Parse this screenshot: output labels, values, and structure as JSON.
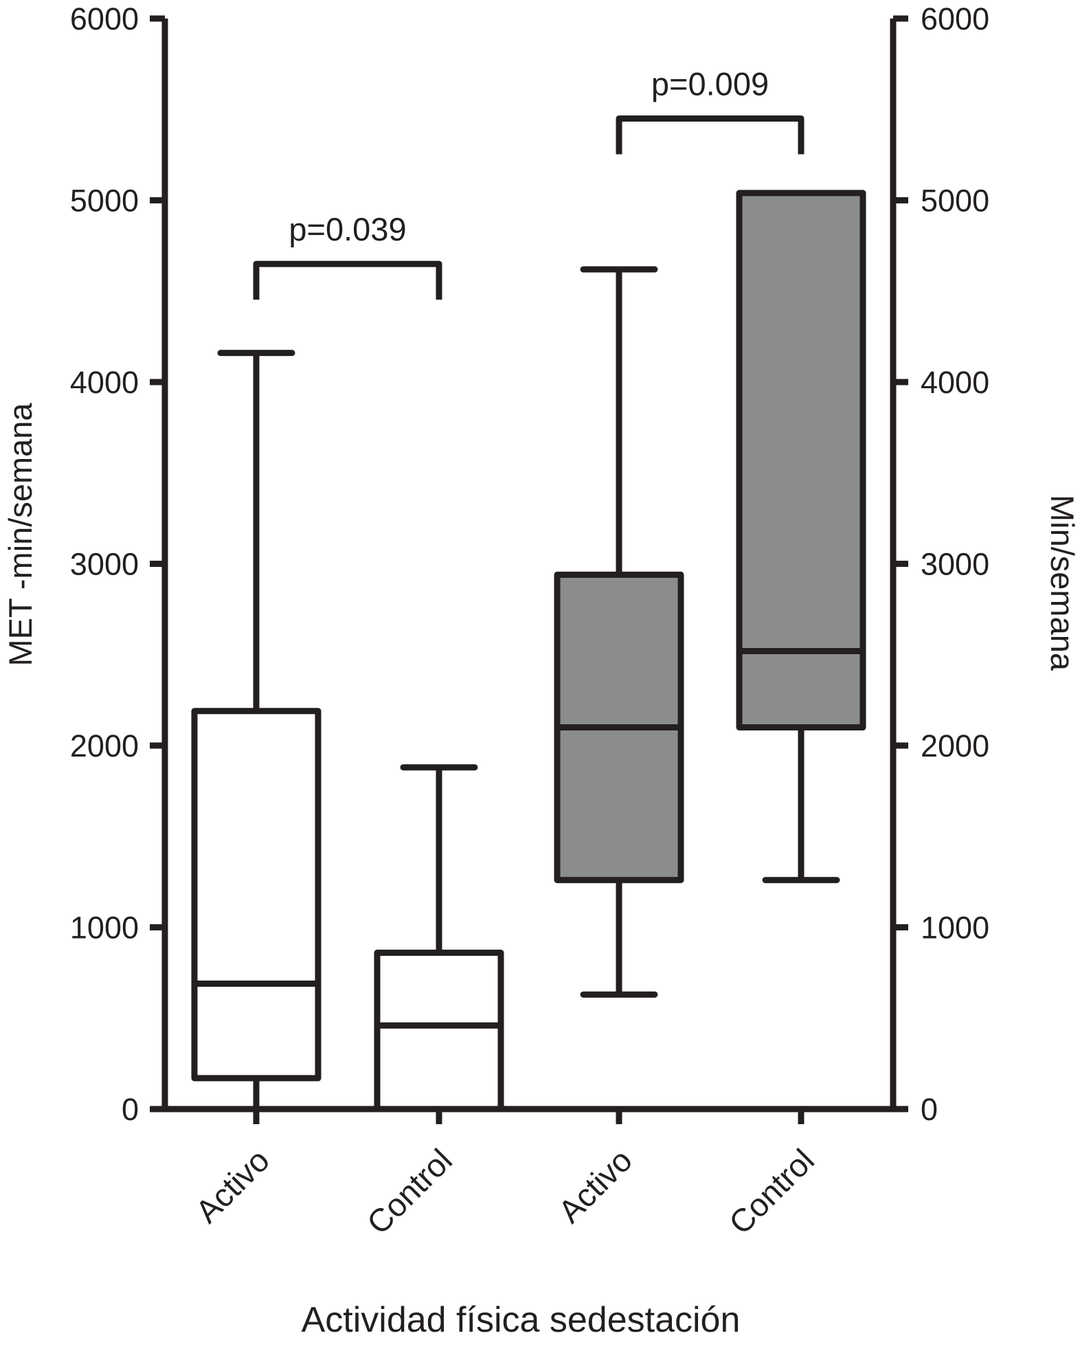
{
  "chart_data": {
    "type": "box",
    "categories": [
      "Activo",
      "Control",
      "Activo",
      "Control"
    ],
    "boxes": [
      {
        "label": "Activo",
        "axis": "left",
        "fill": "#ffffff",
        "min": 0,
        "q1": 170,
        "median": 690,
        "q3": 2190,
        "max": 4160
      },
      {
        "label": "Control",
        "axis": "left",
        "fill": "#ffffff",
        "min": 0,
        "q1": 0,
        "median": 460,
        "q3": 860,
        "max": 1880
      },
      {
        "label": "Activo",
        "axis": "right",
        "fill": "#8b8c8e",
        "min": 630,
        "q1": 1260,
        "median": 2100,
        "q3": 2940,
        "max": 4620
      },
      {
        "label": "Control",
        "axis": "right",
        "fill": "#8b8c8e",
        "min": 1260,
        "q1": 2100,
        "median": 2520,
        "q3": 5040,
        "max": 5040
      }
    ],
    "comparisons": [
      {
        "between": [
          0,
          1
        ],
        "label": "p=0.039",
        "y": 4650
      },
      {
        "between": [
          2,
          3
        ],
        "label": "p=0.009",
        "y": 5450
      }
    ],
    "ylabel": "MET -min/semana",
    "y2label": "Min/semana",
    "xlabel": "Actividad física sedestación",
    "ylim": [
      0,
      6000
    ],
    "y2lim": [
      0,
      6000
    ],
    "yticks": [
      "0",
      "1000",
      "2000",
      "3000",
      "4000",
      "5000",
      "6000"
    ],
    "y2ticks": [
      "0",
      "1000",
      "2000",
      "3000",
      "4000",
      "5000",
      "6000"
    ],
    "grid": false,
    "colors": {
      "line": "#231f20",
      "box_light": "#ffffff",
      "box_dark": "#8b8c8e"
    }
  }
}
